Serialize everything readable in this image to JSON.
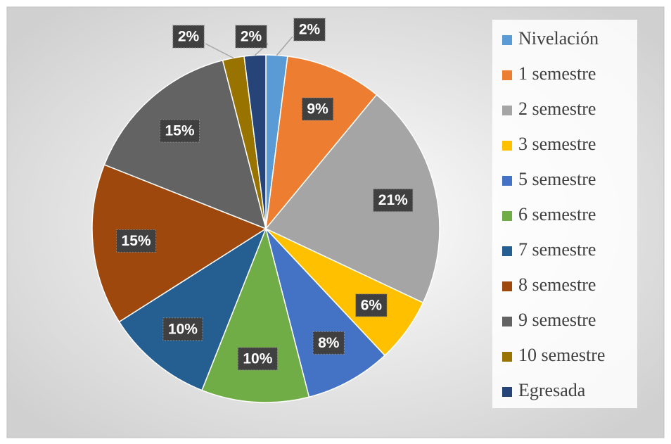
{
  "chart_data": {
    "type": "pie",
    "categories": [
      "Nivelación",
      "1 semestre",
      "2 semestre",
      "3 semestre",
      "5 semestre",
      "6 semestre",
      "7 semestre",
      "8 semestre",
      "9 semestre",
      "10 semestre",
      "Egresada"
    ],
    "values": [
      2,
      9,
      21,
      6,
      8,
      10,
      10,
      15,
      15,
      2,
      2
    ],
    "value_labels": [
      "2%",
      "9%",
      "21%",
      "6%",
      "8%",
      "10%",
      "10%",
      "15%",
      "15%",
      "2%",
      "2%"
    ],
    "colors": [
      "#5b9bd5",
      "#ed7d31",
      "#a5a5a5",
      "#ffc000",
      "#4472c4",
      "#70ad47",
      "#255e91",
      "#9e480e",
      "#636363",
      "#997300",
      "#264478"
    ],
    "legend": "right"
  }
}
